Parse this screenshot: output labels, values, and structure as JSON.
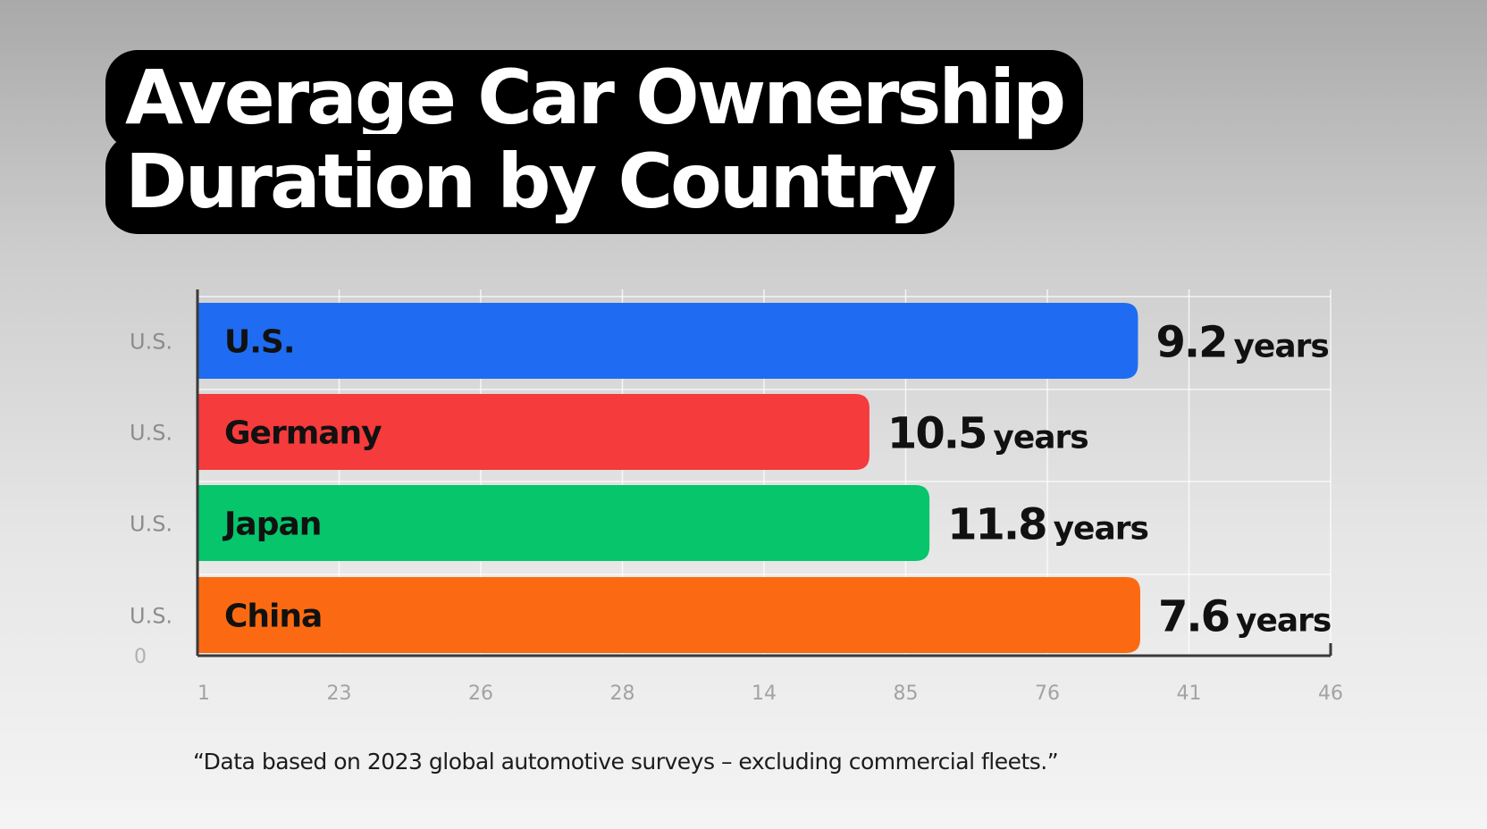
{
  "chart_data": {
    "type": "bar",
    "orientation": "horizontal",
    "title_lines": [
      "Average Car Ownership",
      "Duration by Country"
    ],
    "categories": [
      "U.S.",
      "Germany",
      "Japan",
      "China"
    ],
    "y_tick_labels": [
      "U.S.",
      "U.S.",
      "U.S.",
      "U.S."
    ],
    "y_extra_label": "0",
    "x_tick_labels": [
      "1",
      "23",
      "26",
      "28",
      "14",
      "85",
      "76",
      "41",
      "46"
    ],
    "series": [
      {
        "values": [
          9.2,
          10.5,
          11.8,
          7.6
        ],
        "value_labels": [
          "9.2",
          "10.5",
          "11.8",
          "7.6"
        ],
        "unit": "years",
        "colors": [
          "#1f6cf2",
          "#f53b3b",
          "#06c56b",
          "#fb6a12"
        ],
        "bar_extent_fraction": [
          0.83,
          0.593,
          0.646,
          0.832
        ]
      }
    ],
    "grid": true,
    "legend": "none"
  },
  "footnote": "“Data based on 2023 global automotive surveys – excluding commercial fleets.”"
}
